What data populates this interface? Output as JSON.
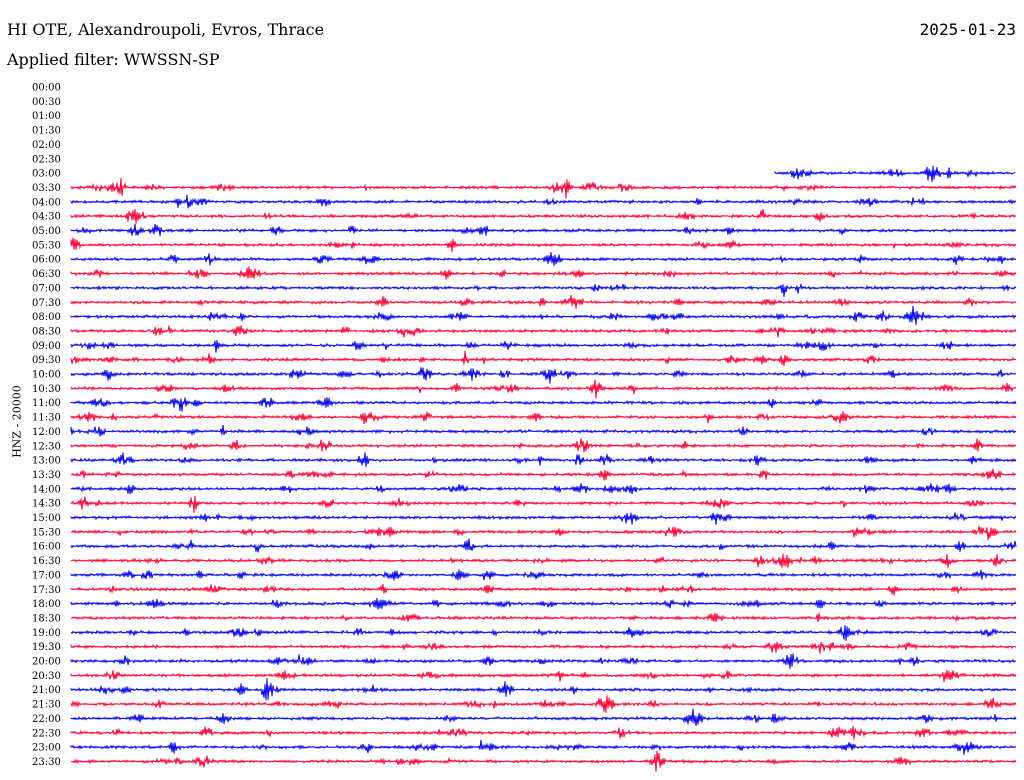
{
  "header": {
    "station": "HI OTE, Alexandroupoli, Evros, Thrace",
    "filter": "Applied filter: WWSSN-SP",
    "date": "2025-01-23",
    "channel_label": "HNZ - 20000"
  },
  "chart_data": {
    "type": "line",
    "title": "HI OTE, Alexandroupoli, Evros, Thrace",
    "subtitle": "Applied filter: WWSSN-SP",
    "date": "2025-01-23",
    "ylabel": "HNZ - 20000",
    "row_labels": [
      "00:00",
      "00:30",
      "01:00",
      "01:30",
      "02:00",
      "02:30",
      "03:00",
      "03:30",
      "04:00",
      "04:30",
      "05:00",
      "05:30",
      "06:00",
      "06:30",
      "07:00",
      "07:30",
      "08:00",
      "08:30",
      "09:00",
      "09:30",
      "10:00",
      "10:30",
      "11:00",
      "11:30",
      "12:00",
      "12:30",
      "13:00",
      "13:30",
      "14:00",
      "14:30",
      "15:00",
      "15:30",
      "16:00",
      "16:30",
      "17:00",
      "17:30",
      "18:00",
      "18:30",
      "19:00",
      "19:30",
      "20:00",
      "20:30",
      "21:00",
      "21:30",
      "22:00",
      "22:30",
      "23:00",
      "23:30"
    ],
    "trace_colors": {
      "odd": "#ff0033",
      "even": "#0000ee"
    },
    "data_start_row": 6,
    "data_start_fraction": 0.745,
    "traces": [
      {
        "row": "03:00",
        "color": "#0000ee",
        "partial": true
      },
      {
        "row": "03:30",
        "color": "#ff0033"
      }
    ]
  }
}
